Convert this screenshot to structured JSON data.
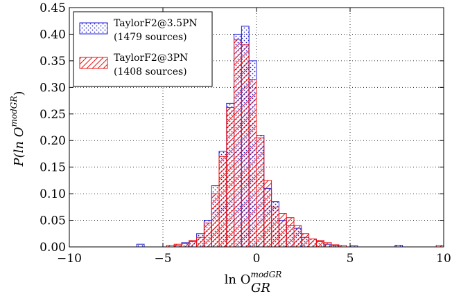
{
  "chart_data": {
    "type": "bar",
    "title": "",
    "xlabel": "ln O_GR^modGR",
    "xlabel_parts": {
      "base": "ln O",
      "sub": "GR",
      "sup": "modGR"
    },
    "ylabel": "P(ln O_GR^modGR)",
    "ylabel_parts": {
      "prefix": "P(ln O",
      "sub": "GR",
      "sup": "modGR",
      "suffix": ")"
    },
    "xlim": [
      -10,
      10
    ],
    "ylim": [
      0,
      0.45
    ],
    "x_ticks": [
      -10,
      -5,
      0,
      5,
      10
    ],
    "x_tick_labels": [
      "−10",
      "−5",
      "0",
      "5",
      "10"
    ],
    "y_ticks": [
      0.0,
      0.05,
      0.1,
      0.15,
      0.2,
      0.25,
      0.3,
      0.35,
      0.4,
      0.45
    ],
    "y_tick_labels": [
      "0.00",
      "0.05",
      "0.10",
      "0.15",
      "0.20",
      "0.25",
      "0.30",
      "0.35",
      "0.40",
      "0.45"
    ],
    "grid": true,
    "legend_position": "top-left",
    "bin_width": 0.4,
    "series": [
      {
        "name": "TaylorF2@3.5PN",
        "name_line2": "(1479 sources)",
        "color": "#1f1fd6",
        "hatch": "dots",
        "bins": [
          {
            "x0": -6.4,
            "y": 0.005
          },
          {
            "x0": -4.4,
            "y": 0.002
          },
          {
            "x0": -4.0,
            "y": 0.008
          },
          {
            "x0": -3.6,
            "y": 0.01
          },
          {
            "x0": -3.2,
            "y": 0.025
          },
          {
            "x0": -2.8,
            "y": 0.05
          },
          {
            "x0": -2.4,
            "y": 0.115
          },
          {
            "x0": -2.0,
            "y": 0.18
          },
          {
            "x0": -1.6,
            "y": 0.27
          },
          {
            "x0": -1.2,
            "y": 0.4
          },
          {
            "x0": -0.8,
            "y": 0.415
          },
          {
            "x0": -0.4,
            "y": 0.35
          },
          {
            "x0": 0.0,
            "y": 0.21
          },
          {
            "x0": 0.4,
            "y": 0.11
          },
          {
            "x0": 0.8,
            "y": 0.085
          },
          {
            "x0": 1.2,
            "y": 0.05
          },
          {
            "x0": 1.6,
            "y": 0.04
          },
          {
            "x0": 2.0,
            "y": 0.035
          },
          {
            "x0": 2.4,
            "y": 0.018
          },
          {
            "x0": 2.8,
            "y": 0.015
          },
          {
            "x0": 3.2,
            "y": 0.01
          },
          {
            "x0": 3.6,
            "y": 0.005
          },
          {
            "x0": 4.0,
            "y": 0.003
          },
          {
            "x0": 5.0,
            "y": 0.002
          },
          {
            "x0": 7.4,
            "y": 0.003
          }
        ]
      },
      {
        "name": "TaylorF2@3PN",
        "name_line2": "(1408 sources)",
        "color": "#ee1111",
        "hatch": "diagonal",
        "bins": [
          {
            "x0": -4.8,
            "y": 0.003
          },
          {
            "x0": -4.4,
            "y": 0.005
          },
          {
            "x0": -4.0,
            "y": 0.006
          },
          {
            "x0": -3.6,
            "y": 0.012
          },
          {
            "x0": -3.2,
            "y": 0.018
          },
          {
            "x0": -2.8,
            "y": 0.045
          },
          {
            "x0": -2.4,
            "y": 0.1
          },
          {
            "x0": -2.0,
            "y": 0.17
          },
          {
            "x0": -1.6,
            "y": 0.262
          },
          {
            "x0": -1.2,
            "y": 0.39
          },
          {
            "x0": -0.8,
            "y": 0.38
          },
          {
            "x0": -0.4,
            "y": 0.315
          },
          {
            "x0": 0.0,
            "y": 0.205
          },
          {
            "x0": 0.4,
            "y": 0.125
          },
          {
            "x0": 0.8,
            "y": 0.075
          },
          {
            "x0": 1.2,
            "y": 0.063
          },
          {
            "x0": 1.6,
            "y": 0.055
          },
          {
            "x0": 2.0,
            "y": 0.04
          },
          {
            "x0": 2.4,
            "y": 0.025
          },
          {
            "x0": 2.8,
            "y": 0.015
          },
          {
            "x0": 3.2,
            "y": 0.012
          },
          {
            "x0": 3.6,
            "y": 0.008
          },
          {
            "x0": 4.0,
            "y": 0.004
          },
          {
            "x0": 4.4,
            "y": 0.003
          },
          {
            "x0": 9.6,
            "y": 0.003
          }
        ]
      }
    ]
  }
}
